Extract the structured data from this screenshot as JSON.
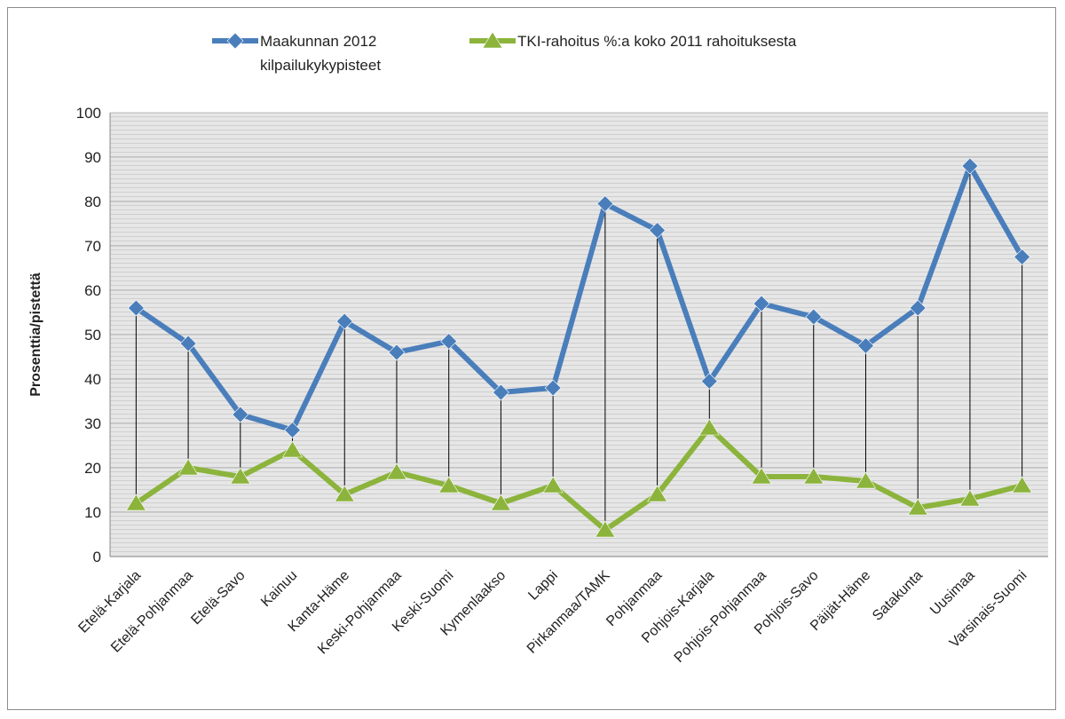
{
  "chart_data": {
    "type": "line",
    "title": "",
    "xlabel": "",
    "ylabel": "Prosenttia/pistettä",
    "ylim": [
      0,
      100
    ],
    "yticks": [
      0,
      10,
      20,
      30,
      40,
      50,
      60,
      70,
      80,
      90,
      100
    ],
    "grid": true,
    "legend_position": "top",
    "categories": [
      "Etelä-Karjala",
      "Etelä-Pohjanmaa",
      "Etelä-Savo",
      "Kainuu",
      "Kanta-Häme",
      "Keski-Pohjanmaa",
      "Keski-Suomi",
      "Kymenlaakso",
      "Lappi",
      "Pirkanmaa/TAMK",
      "Pohjanmaa",
      "Pohjois-Karjala",
      "Pohjois-Pohjanmaa",
      "Pohjois-Savo",
      "Päijät-Häme",
      "Satakunta",
      "Uusimaa",
      "Varsinais-Suomi"
    ],
    "series": [
      {
        "name_lines": [
          "Maakunnan 2012",
          "kilpailukykypisteet"
        ],
        "color": "#4a7ebb",
        "marker": "diamond",
        "values": [
          56,
          48,
          32,
          28.5,
          53,
          46,
          48.5,
          37,
          38,
          79.5,
          73.5,
          39.5,
          57,
          54,
          47.5,
          56,
          88,
          67.5
        ]
      },
      {
        "name_lines": [
          "TKI-rahoitus %:a koko 2011 rahoituksesta"
        ],
        "color": "#8cb43c",
        "marker": "triangle",
        "values": [
          12,
          20,
          18,
          24,
          14,
          19,
          16,
          12,
          16,
          6,
          14,
          29,
          18,
          18,
          17,
          11,
          13,
          16
        ]
      }
    ],
    "drop_lines": true
  }
}
